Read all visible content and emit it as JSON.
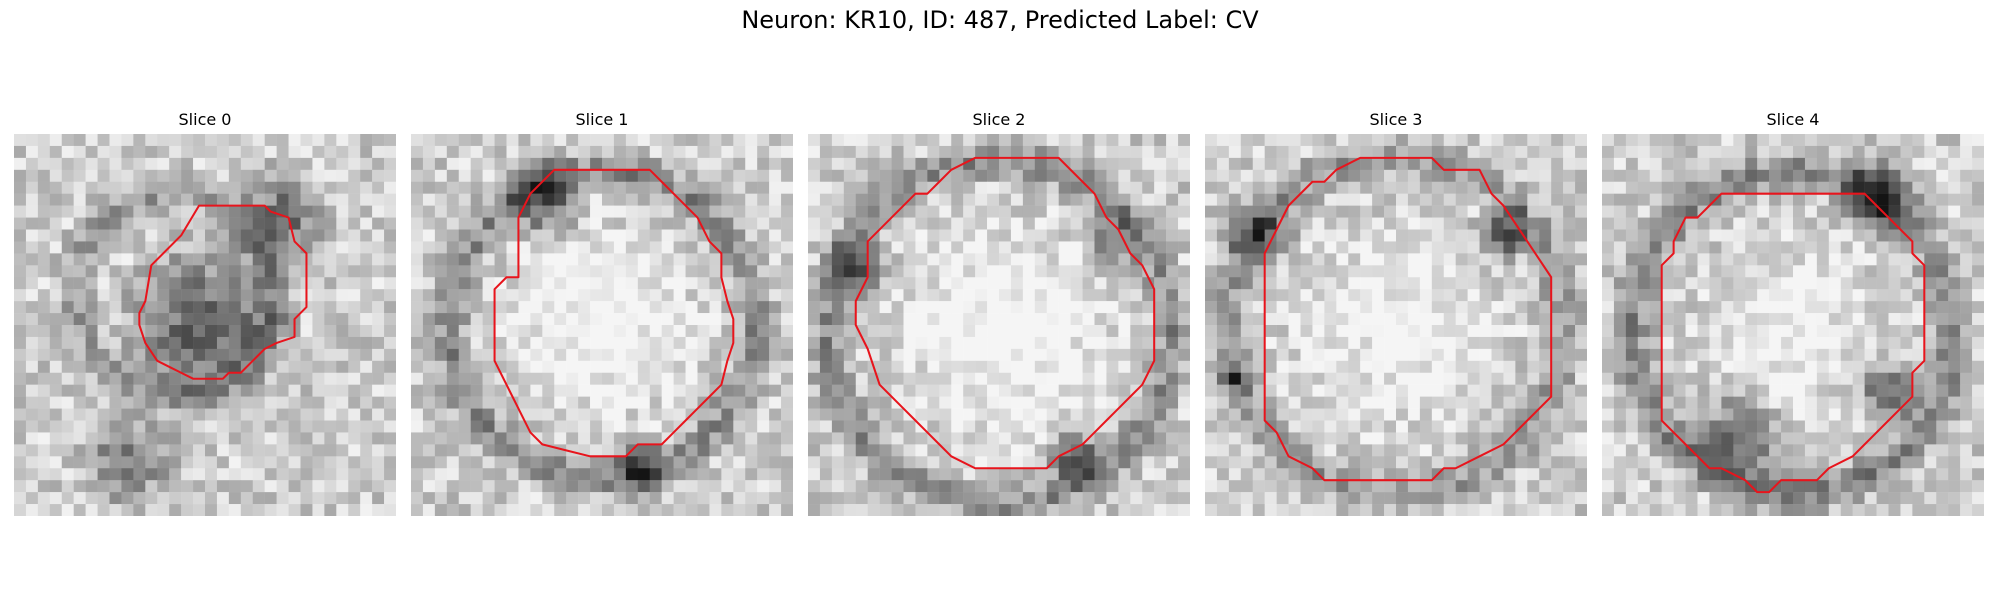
{
  "figure": {
    "title": "Neuron: KR10, ID: 487, Predicted Label: CV"
  },
  "panels": [
    {
      "title": "Slice 0",
      "contour_color": "#e8141c",
      "seed": 11,
      "darkness": [
        [
          0.42,
          0.42,
          0.26,
          0.1
        ],
        [
          0.5,
          0.5,
          0.16,
          0.35
        ],
        [
          0.7,
          0.22,
          0.1,
          0.3
        ],
        [
          0.3,
          0.85,
          0.1,
          0.25
        ]
      ]
    },
    {
      "title": "Slice 1",
      "contour_color": "#e8141c",
      "seed": 23,
      "darkness": [
        [
          0.5,
          0.5,
          0.4,
          0.15
        ],
        [
          0.5,
          0.5,
          0.32,
          -0.3
        ],
        [
          0.35,
          0.17,
          0.08,
          0.35
        ],
        [
          0.6,
          0.88,
          0.06,
          0.3
        ]
      ]
    },
    {
      "title": "Slice 2",
      "contour_color": "#e8141c",
      "seed": 37,
      "darkness": [
        [
          0.5,
          0.52,
          0.45,
          0.14
        ],
        [
          0.52,
          0.52,
          0.37,
          -0.3
        ],
        [
          0.12,
          0.35,
          0.06,
          0.4
        ],
        [
          0.7,
          0.85,
          0.06,
          0.35
        ],
        [
          0.8,
          0.28,
          0.06,
          0.25
        ]
      ]
    },
    {
      "title": "Slice 3",
      "contour_color": "#e8141c",
      "seed": 53,
      "darkness": [
        [
          0.5,
          0.5,
          0.44,
          0.12
        ],
        [
          0.5,
          0.52,
          0.36,
          -0.22
        ],
        [
          0.14,
          0.26,
          0.07,
          0.35
        ],
        [
          0.78,
          0.26,
          0.06,
          0.4
        ],
        [
          0.08,
          0.64,
          0.03,
          0.45
        ]
      ]
    },
    {
      "title": "Slice 4",
      "contour_color": "#e8141c",
      "seed": 71,
      "darkness": [
        [
          0.5,
          0.52,
          0.42,
          0.16
        ],
        [
          0.5,
          0.5,
          0.3,
          -0.22
        ],
        [
          0.72,
          0.17,
          0.08,
          0.45
        ],
        [
          0.36,
          0.8,
          0.1,
          0.3
        ],
        [
          0.75,
          0.68,
          0.06,
          0.35
        ]
      ]
    }
  ]
}
